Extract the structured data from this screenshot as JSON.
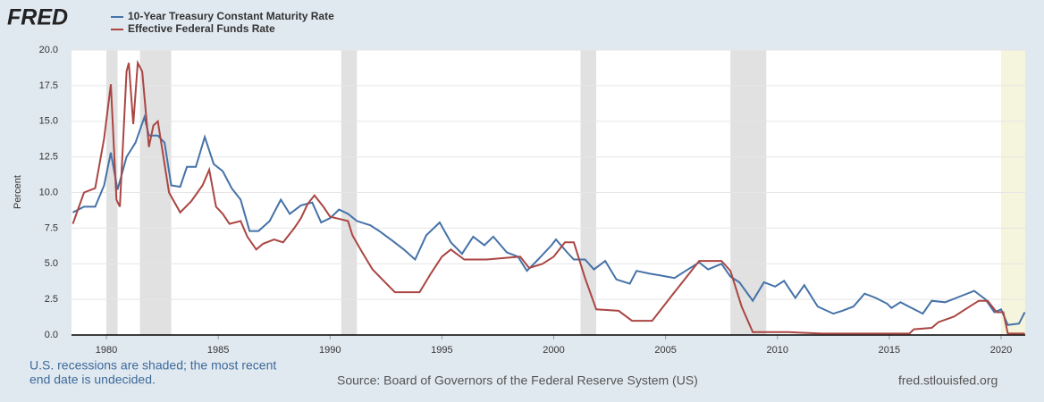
{
  "logo": "FRED",
  "chart_data": {
    "type": "line",
    "y_label": "Percent",
    "xlim": [
      1978.44,
      2021.08
    ],
    "ylim": [
      0,
      20
    ],
    "xticks": [
      1980,
      1985,
      1990,
      1995,
      2000,
      2005,
      2010,
      2015,
      2020
    ],
    "yticks": [
      {
        "value": 0,
        "label": "0.0"
      },
      {
        "value": 2.5,
        "label": "2.5"
      },
      {
        "value": 5,
        "label": "5.0"
      },
      {
        "value": 7.5,
        "label": "7.5"
      },
      {
        "value": 10,
        "label": "10.0"
      },
      {
        "value": 12.5,
        "label": "12.5"
      },
      {
        "value": 15,
        "label": "15.0"
      },
      {
        "value": 17.5,
        "label": "17.5"
      },
      {
        "value": 20,
        "label": "20.0"
      }
    ],
    "grid": true,
    "recessions": [
      [
        1980.0,
        1980.5
      ],
      [
        1981.5,
        1982.9
      ],
      [
        1990.5,
        1991.2
      ],
      [
        2001.2,
        2001.9
      ],
      [
        2007.9,
        2009.5
      ],
      [
        2020.0,
        2021.08
      ]
    ],
    "recession_color": "#e1e1e1",
    "undecided_color": "#f5f4dc",
    "series": [
      {
        "name": "10-Year Treasury Constant Maturity Rate",
        "color": "#4572a7",
        "x": [
          1978.5,
          1979.0,
          1979.5,
          1979.9,
          1980.2,
          1980.5,
          1980.9,
          1981.3,
          1981.7,
          1981.9,
          1982.3,
          1982.6,
          1982.9,
          1983.3,
          1983.6,
          1984.0,
          1984.4,
          1984.8,
          1985.2,
          1985.6,
          1986.0,
          1986.4,
          1986.8,
          1987.3,
          1987.8,
          1988.2,
          1988.7,
          1989.2,
          1989.6,
          1990.0,
          1990.4,
          1990.8,
          1991.2,
          1991.8,
          1992.2,
          1992.8,
          1993.3,
          1993.8,
          1994.3,
          1994.9,
          1995.4,
          1995.9,
          1996.4,
          1996.9,
          1997.3,
          1997.9,
          1998.4,
          1998.8,
          1999.3,
          1999.9,
          2000.1,
          2000.6,
          2000.9,
          2001.4,
          2001.8,
          2002.3,
          2002.8,
          2003.4,
          2003.7,
          2004.3,
          2004.7,
          2005.4,
          2005.9,
          2006.5,
          2006.9,
          2007.5,
          2007.9,
          2008.3,
          2008.9,
          2009.4,
          2009.9,
          2010.3,
          2010.8,
          2011.2,
          2011.8,
          2012.5,
          2012.9,
          2013.4,
          2013.9,
          2014.4,
          2014.9,
          2015.1,
          2015.5,
          2016.5,
          2016.9,
          2017.5,
          2018.0,
          2018.8,
          2019.3,
          2019.7,
          2020.0,
          2020.3,
          2020.8,
          2021.06
        ],
        "values": [
          8.6,
          9.0,
          9.0,
          10.5,
          12.8,
          10.2,
          12.5,
          13.5,
          15.3,
          14.0,
          14.0,
          13.5,
          10.5,
          10.4,
          11.8,
          11.8,
          13.9,
          12.0,
          11.5,
          10.3,
          9.5,
          7.3,
          7.3,
          8.0,
          9.5,
          8.5,
          9.1,
          9.3,
          7.9,
          8.2,
          8.8,
          8.5,
          8.0,
          7.7,
          7.3,
          6.6,
          6.0,
          5.3,
          7.0,
          7.9,
          6.5,
          5.7,
          6.9,
          6.3,
          6.9,
          5.8,
          5.5,
          4.5,
          5.3,
          6.3,
          6.7,
          5.8,
          5.3,
          5.3,
          4.6,
          5.2,
          3.9,
          3.6,
          4.5,
          4.3,
          4.2,
          4.0,
          4.5,
          5.1,
          4.6,
          5.0,
          4.1,
          3.7,
          2.4,
          3.7,
          3.4,
          3.8,
          2.6,
          3.5,
          2.0,
          1.5,
          1.7,
          2.0,
          2.9,
          2.6,
          2.2,
          1.9,
          2.3,
          1.5,
          2.4,
          2.3,
          2.6,
          3.1,
          2.5,
          1.6,
          1.8,
          0.7,
          0.8,
          1.6
        ]
      },
      {
        "name": "Effective Federal Funds Rate",
        "color": "#aa4643",
        "x": [
          1978.5,
          1979.0,
          1979.5,
          1979.9,
          1980.2,
          1980.45,
          1980.6,
          1980.9,
          1981.0,
          1981.2,
          1981.4,
          1981.6,
          1981.9,
          1982.1,
          1982.3,
          1982.6,
          1982.8,
          1983.3,
          1983.8,
          1984.3,
          1984.6,
          1984.9,
          1985.2,
          1985.5,
          1986.0,
          1986.3,
          1986.7,
          1987.0,
          1987.5,
          1987.9,
          1988.4,
          1988.7,
          1989.0,
          1989.3,
          1989.7,
          1990.0,
          1990.8,
          1991.0,
          1991.4,
          1991.9,
          1992.4,
          1992.9,
          1993.5,
          1994.0,
          1994.5,
          1995.0,
          1995.4,
          1996.0,
          1997.0,
          1998.5,
          1998.9,
          1999.5,
          2000.0,
          2000.5,
          2000.9,
          2001.4,
          2001.9,
          2002.9,
          2003.5,
          2004.4,
          2005.3,
          2006.5,
          2007.5,
          2007.9,
          2008.4,
          2008.9,
          2009.5,
          2010.5,
          2012.0,
          2014.0,
          2015.9,
          2016.1,
          2016.9,
          2017.2,
          2017.9,
          2018.5,
          2019.0,
          2019.4,
          2019.8,
          2020.1,
          2020.3,
          2021.06
        ],
        "values": [
          7.8,
          10.0,
          10.3,
          13.8,
          17.6,
          9.5,
          9.0,
          18.5,
          19.1,
          14.8,
          19.1,
          18.5,
          13.2,
          14.7,
          15.0,
          12.0,
          10.0,
          8.6,
          9.4,
          10.5,
          11.6,
          9.0,
          8.5,
          7.8,
          8.0,
          6.9,
          6.0,
          6.4,
          6.7,
          6.5,
          7.5,
          8.2,
          9.2,
          9.8,
          9.0,
          8.3,
          8.0,
          7.0,
          5.9,
          4.6,
          3.8,
          3.0,
          3.0,
          3.0,
          4.3,
          5.5,
          6.0,
          5.3,
          5.3,
          5.5,
          4.7,
          5.0,
          5.5,
          6.5,
          6.5,
          4.0,
          1.8,
          1.7,
          1.0,
          1.0,
          2.8,
          5.2,
          5.2,
          4.5,
          2.0,
          0.2,
          0.2,
          0.2,
          0.1,
          0.1,
          0.1,
          0.4,
          0.5,
          0.9,
          1.3,
          1.9,
          2.4,
          2.4,
          1.6,
          1.6,
          0.1,
          0.1
        ]
      }
    ]
  },
  "footer": {
    "note": [
      "U.S. recessions are shaded; the most recent",
      "end date is undecided."
    ],
    "source": "Source: Board of Governors of the Federal Reserve System (US)",
    "site": "fred.stlouisfed.org"
  }
}
